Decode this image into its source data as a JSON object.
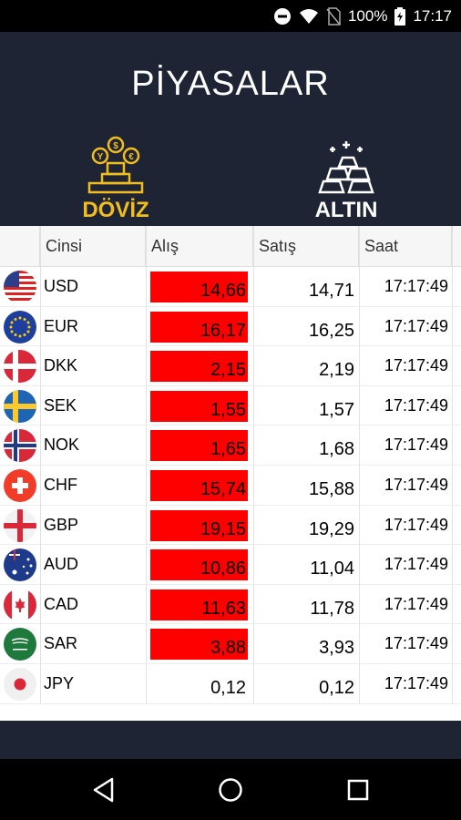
{
  "statusbar": {
    "battery": "100%",
    "time": "17:17"
  },
  "header": {
    "title": "PİYASALAR"
  },
  "tabs": [
    {
      "label": "DÖVİZ",
      "active": true,
      "icon": "coins-icon"
    },
    {
      "label": "ALTIN",
      "active": false,
      "icon": "gold-bars-icon"
    }
  ],
  "table": {
    "columns": [
      "Cinsi",
      "Alış",
      "Satış",
      "Saat"
    ],
    "rows": [
      {
        "code": "USD",
        "buy": "14,66",
        "sell": "14,71",
        "time": "17:17:49",
        "highlight": true
      },
      {
        "code": "EUR",
        "buy": "16,17",
        "sell": "16,25",
        "time": "17:17:49",
        "highlight": true
      },
      {
        "code": "DKK",
        "buy": "2,15",
        "sell": "2,19",
        "time": "17:17:49",
        "highlight": true
      },
      {
        "code": "SEK",
        "buy": "1,55",
        "sell": "1,57",
        "time": "17:17:49",
        "highlight": true
      },
      {
        "code": "NOK",
        "buy": "1,65",
        "sell": "1,68",
        "time": "17:17:49",
        "highlight": true
      },
      {
        "code": "CHF",
        "buy": "15,74",
        "sell": "15,88",
        "time": "17:17:49",
        "highlight": true
      },
      {
        "code": "GBP",
        "buy": "19,15",
        "sell": "19,29",
        "time": "17:17:49",
        "highlight": true
      },
      {
        "code": "AUD",
        "buy": "10,86",
        "sell": "11,04",
        "time": "17:17:49",
        "highlight": true
      },
      {
        "code": "CAD",
        "buy": "11,63",
        "sell": "11,78",
        "time": "17:17:49",
        "highlight": true
      },
      {
        "code": "SAR",
        "buy": "3,88",
        "sell": "3,93",
        "time": "17:17:49",
        "highlight": true
      },
      {
        "code": "JPY",
        "buy": "0,12",
        "sell": "0,12",
        "time": "17:17:49",
        "highlight": false
      }
    ]
  },
  "colors": {
    "header_bg": "#1e2434",
    "accent_gold": "#f2bd1e",
    "highlight_red": "#ff0000"
  }
}
